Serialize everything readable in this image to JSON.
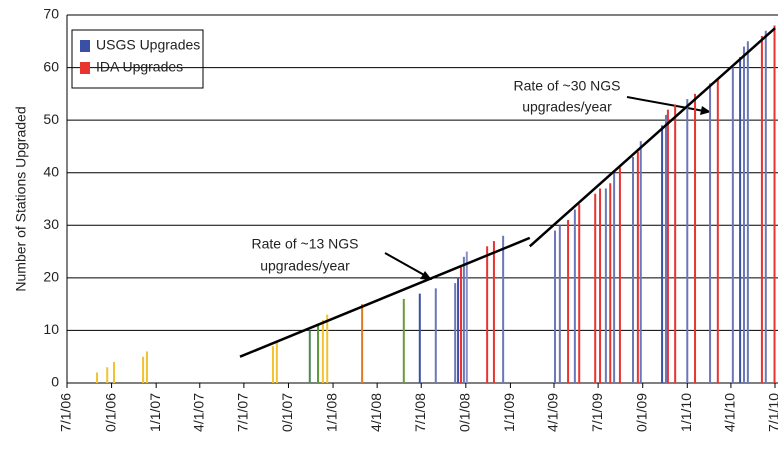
{
  "chart_data": {
    "type": "bar",
    "y_label": "Number of Stations Upgraded",
    "ylim": [
      0,
      70
    ],
    "yticks": [
      0,
      10,
      20,
      30,
      40,
      50,
      60,
      70
    ],
    "xlim": [
      "2006-07-01",
      "2010-07-01"
    ],
    "xticks": [
      {
        "value": "2006-07-01",
        "label": "7/1/06"
      },
      {
        "value": "2006-10-01",
        "label": "0/1/06"
      },
      {
        "value": "2007-01-01",
        "label": "1/1/07"
      },
      {
        "value": "2007-04-01",
        "label": "4/1/07"
      },
      {
        "value": "2007-07-01",
        "label": "7/1/07"
      },
      {
        "value": "2007-10-01",
        "label": "0/1/07"
      },
      {
        "value": "2008-01-01",
        "label": "1/1/08"
      },
      {
        "value": "2008-04-01",
        "label": "4/1/08"
      },
      {
        "value": "2008-07-01",
        "label": "7/1/08"
      },
      {
        "value": "2008-10-01",
        "label": "0/1/08"
      },
      {
        "value": "2009-01-01",
        "label": "1/1/09"
      },
      {
        "value": "2009-04-01",
        "label": "4/1/09"
      },
      {
        "value": "2009-07-01",
        "label": "7/1/09"
      },
      {
        "value": "2009-10-01",
        "label": "0/1/09"
      },
      {
        "value": "2010-01-01",
        "label": "1/1/10"
      },
      {
        "value": "2010-04-01",
        "label": "4/1/10"
      },
      {
        "value": "2010-07-01",
        "label": "7/1/10"
      }
    ],
    "grid": true,
    "legend": [
      {
        "name": "USGS Upgrades",
        "color": "#3a4fa6"
      },
      {
        "name": "IDA Upgrades",
        "color": "#e8332f"
      }
    ],
    "x": [
      "2006-09-01",
      "2006-09-22",
      "2006-10-06",
      "2006-12-05",
      "2006-12-13",
      "2007-08-30",
      "2007-09-07",
      "2007-11-14",
      "2007-12-01",
      "2007-12-11",
      "2007-12-20",
      "2008-03-01",
      "2008-05-26",
      "2008-06-28",
      "2008-07-31",
      "2008-09-09",
      "2008-09-15",
      "2008-09-21",
      "2008-09-27",
      "2008-10-03",
      "2008-11-14",
      "2008-11-28",
      "2008-12-17",
      "2009-04-03",
      "2009-04-13",
      "2009-04-30",
      "2009-05-14",
      "2009-05-23",
      "2009-06-25",
      "2009-07-05",
      "2009-07-17",
      "2009-07-26",
      "2009-08-03",
      "2009-08-15",
      "2009-09-11",
      "2009-09-21",
      "2009-09-27",
      "2009-11-10",
      "2009-11-18",
      "2009-11-22",
      "2009-12-07",
      "2010-01-01",
      "2010-01-17",
      "2010-02-17",
      "2010-03-05",
      "2010-04-05",
      "2010-04-20",
      "2010-04-28",
      "2010-05-06",
      "2010-06-04",
      "2010-06-12",
      "2010-06-30"
    ],
    "values": [
      2,
      3,
      4,
      5,
      6,
      7,
      8,
      10,
      11,
      12,
      13,
      15,
      16,
      17,
      18,
      19,
      20,
      22,
      24,
      25,
      26,
      27,
      28,
      29,
      30,
      31,
      33,
      34,
      36,
      37,
      37,
      38,
      40,
      41,
      43,
      44,
      46,
      49,
      51,
      52,
      53,
      54,
      55,
      57,
      58,
      60,
      62,
      64,
      65,
      66,
      67,
      68
    ],
    "colors": [
      "#f2c230",
      "#f2c230",
      "#f2c230",
      "#f2c230",
      "#f2c230",
      "#f2c230",
      "#f2c230",
      "#4a8a5a",
      "#5d9a3a",
      "#f2c230",
      "#f2c230",
      "#e07a20",
      "#6a9a3a",
      "#3a4fa6",
      "#6a78b8",
      "#6a78b8",
      "#3a4fa6",
      "#e8332f",
      "#6a78b8",
      "#8a90c8",
      "#e8332f",
      "#e8332f",
      "#6a78b8",
      "#6a78b8",
      "#6a78b8",
      "#e8332f",
      "#6a78b8",
      "#e8332f",
      "#e8332f",
      "#e8332f",
      "#6a78b8",
      "#e8332f",
      "#6a78b8",
      "#e8332f",
      "#6a78b8",
      "#e8332f",
      "#6a78b8",
      "#3a4fa6",
      "#6a78b8",
      "#e8332f",
      "#e8332f",
      "#6a78b8",
      "#e8332f",
      "#6a78b8",
      "#e8332f",
      "#6a78b8",
      "#3a4fa6",
      "#6a78b8",
      "#6a78b8",
      "#e8332f",
      "#6a78b8",
      "#e8332f"
    ],
    "trend_lines": [
      {
        "x": [
          "2007-06-23",
          "2009-02-10"
        ],
        "y": [
          5,
          27.6
        ]
      },
      {
        "x": [
          "2009-02-10",
          "2010-07-01"
        ],
        "y": [
          26,
          67.5
        ]
      }
    ],
    "annotations": [
      {
        "lines": [
          "Rate of ~13 NGS",
          "upgrades/year"
        ]
      },
      {
        "lines": [
          "Rate of ~30 NGS",
          "upgrades/year"
        ]
      }
    ]
  }
}
